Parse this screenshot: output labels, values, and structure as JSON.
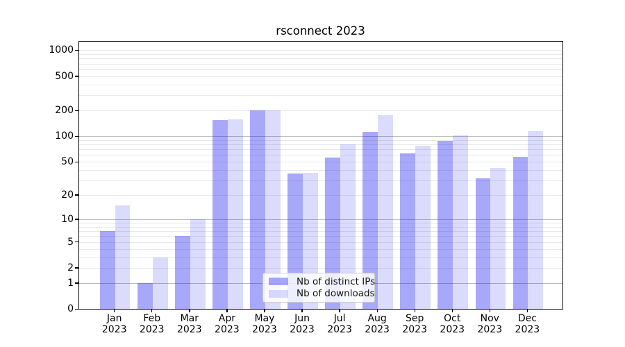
{
  "title": "rsconnect 2023",
  "chart_data": {
    "type": "bar",
    "title": "rsconnect 2023",
    "categories": [
      "Jan 2023",
      "Feb 2023",
      "Mar 2023",
      "Apr 2023",
      "May 2023",
      "Jun 2023",
      "Jul 2023",
      "Aug 2023",
      "Sep 2023",
      "Oct 2023",
      "Nov 2023",
      "Dec 2023"
    ],
    "series": [
      {
        "name": "Nb of distinct IPs",
        "color": "rgba(15,15,242,0.36)",
        "values": [
          7,
          1,
          6,
          155,
          200,
          36,
          56,
          112,
          63,
          88,
          32,
          57
        ]
      },
      {
        "name": "Nb of downloads",
        "color": "rgba(15,15,242,0.15)",
        "values": [
          15,
          3,
          10,
          158,
          200,
          37,
          80,
          176,
          77,
          102,
          42,
          115
        ]
      }
    ],
    "xlabel": "",
    "ylabel": "",
    "yscale": "symlog (position proportional to log10(1+value))",
    "ytick_values": [
      0,
      1,
      2,
      5,
      10,
      20,
      50,
      100,
      200,
      500,
      1000
    ],
    "ytick_labels": [
      "0",
      "1",
      "2",
      "5",
      "10",
      "20",
      "50",
      "100",
      "200",
      "500",
      "1000"
    ],
    "ylim": [
      0,
      1280
    ],
    "grid": "horizontal major+minor log gridlines",
    "legend_position": "inside, lower center"
  },
  "colors": {
    "bar_distinct_ips": "rgba(15,15,242,0.36)",
    "bar_downloads": "rgba(15,15,242,0.15)",
    "grid_major": "#bcbcbc",
    "grid_minor": "#e9e9e9",
    "axis_spine": "#000000",
    "legend_border": "#cccccc"
  }
}
